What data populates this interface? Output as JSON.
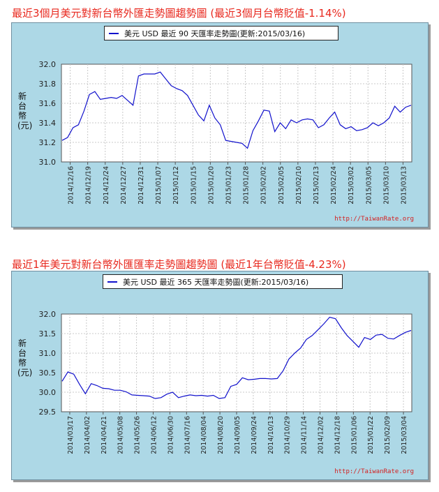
{
  "charts": [
    {
      "heading": "最近3個月美元對新台幣外匯走勢圖趨勢圖 (最近3個月台幣貶值-1.14%)",
      "legend": "美元 USD 最近 90 天匯率走勢圖(更新:2015/03/16)",
      "ylabel": "新台幣(元)",
      "credit": "http://TaiwanRate.org",
      "colors": {
        "line": "#1111cc",
        "panel": "#add8e6",
        "title": "#e8281e"
      }
    },
    {
      "heading": "最近1年美元對新台幣外匯匯率走勢圖趨勢圖 (最近1年台幣貶值-4.23%)",
      "legend": "美元 USD 最近 365 天匯率走勢圖(更新:2015/03/16)",
      "ylabel": "新台幣(元)",
      "credit": "http://TaiwanRate.org",
      "colors": {
        "line": "#1111cc",
        "panel": "#add8e6",
        "title": "#e8281e"
      }
    }
  ],
  "chart_data": [
    {
      "type": "line",
      "title": "最近3個月美元對新台幣外匯走勢圖趨勢圖 (最近3個月台幣貶值-1.14%)",
      "ylabel": "新台幣(元)",
      "xlabel": "",
      "ylim": [
        31.0,
        32.0
      ],
      "yticks": [
        "31.0",
        "31.2",
        "31.4",
        "31.6",
        "31.8",
        "32.0"
      ],
      "grid": true,
      "legend_position": "top",
      "xticks": [
        "2014/12/16",
        "2014/12/19",
        "2014/12/24",
        "2014/12/27",
        "2014/12/31",
        "2015/01/07",
        "2015/01/12",
        "2015/01/15",
        "2015/01/20",
        "2015/01/23",
        "2015/01/28",
        "2015/02/02",
        "2015/02/05",
        "2015/02/10",
        "2015/02/13",
        "2015/02/24",
        "2015/03/02",
        "2015/03/05",
        "2015/03/10",
        "2015/03/13"
      ],
      "series": [
        {
          "name": "美元 USD",
          "values": [
            31.22,
            31.25,
            31.35,
            31.38,
            31.52,
            31.69,
            31.72,
            31.64,
            31.65,
            31.66,
            31.65,
            31.68,
            31.63,
            31.58,
            31.88,
            31.9,
            31.9,
            31.9,
            31.92,
            31.85,
            31.78,
            31.75,
            31.73,
            31.68,
            31.58,
            31.48,
            31.42,
            31.58,
            31.45,
            31.38,
            31.22,
            31.21,
            31.2,
            31.19,
            31.14,
            31.32,
            31.42,
            31.53,
            31.52,
            31.31,
            31.4,
            31.34,
            31.43,
            31.4,
            31.43,
            31.44,
            31.43,
            31.35,
            31.38,
            31.45,
            31.51,
            31.38,
            31.34,
            31.36,
            31.32,
            31.33,
            31.35,
            31.4,
            31.37,
            31.4,
            31.45,
            31.57,
            31.51,
            31.56,
            31.58
          ]
        }
      ]
    },
    {
      "type": "line",
      "title": "最近1年美元對新台幣外匯匯率走勢圖趨勢圖 (最近1年台幣貶值-4.23%)",
      "ylabel": "新台幣(元)",
      "xlabel": "",
      "ylim": [
        29.5,
        32.0
      ],
      "yticks": [
        "29.5",
        "30.0",
        "30.5",
        "31.0",
        "31.5",
        "32.0"
      ],
      "grid": true,
      "legend_position": "top",
      "xticks": [
        "2014/03/17",
        "2014/04/02",
        "2014/04/21",
        "2014/05/08",
        "2014/05/26",
        "2014/06/12",
        "2014/06/30",
        "2014/07/16",
        "2014/08/04",
        "2014/08/20",
        "2014/09/05",
        "2014/09/24",
        "2014/10/13",
        "2014/10/29",
        "2014/11/14",
        "2014/12/02",
        "2014/12/18",
        "2015/01/06",
        "2015/01/22",
        "2015/02/09",
        "2015/03/04"
      ],
      "series": [
        {
          "name": "美元 USD",
          "values": [
            30.28,
            30.52,
            30.46,
            30.2,
            29.96,
            30.22,
            30.17,
            30.1,
            30.09,
            30.05,
            30.05,
            30.01,
            29.93,
            29.92,
            29.91,
            29.9,
            29.84,
            29.86,
            29.95,
            30.0,
            29.86,
            29.9,
            29.93,
            29.91,
            29.92,
            29.9,
            29.92,
            29.84,
            29.86,
            30.15,
            30.2,
            30.37,
            30.32,
            30.33,
            30.35,
            30.35,
            30.34,
            30.35,
            30.55,
            30.85,
            31.0,
            31.13,
            31.35,
            31.45,
            31.6,
            31.75,
            31.92,
            31.88,
            31.65,
            31.45,
            31.3,
            31.15,
            31.4,
            31.35,
            31.46,
            31.48,
            31.38,
            31.36,
            31.45,
            31.53,
            31.58
          ]
        }
      ]
    }
  ]
}
